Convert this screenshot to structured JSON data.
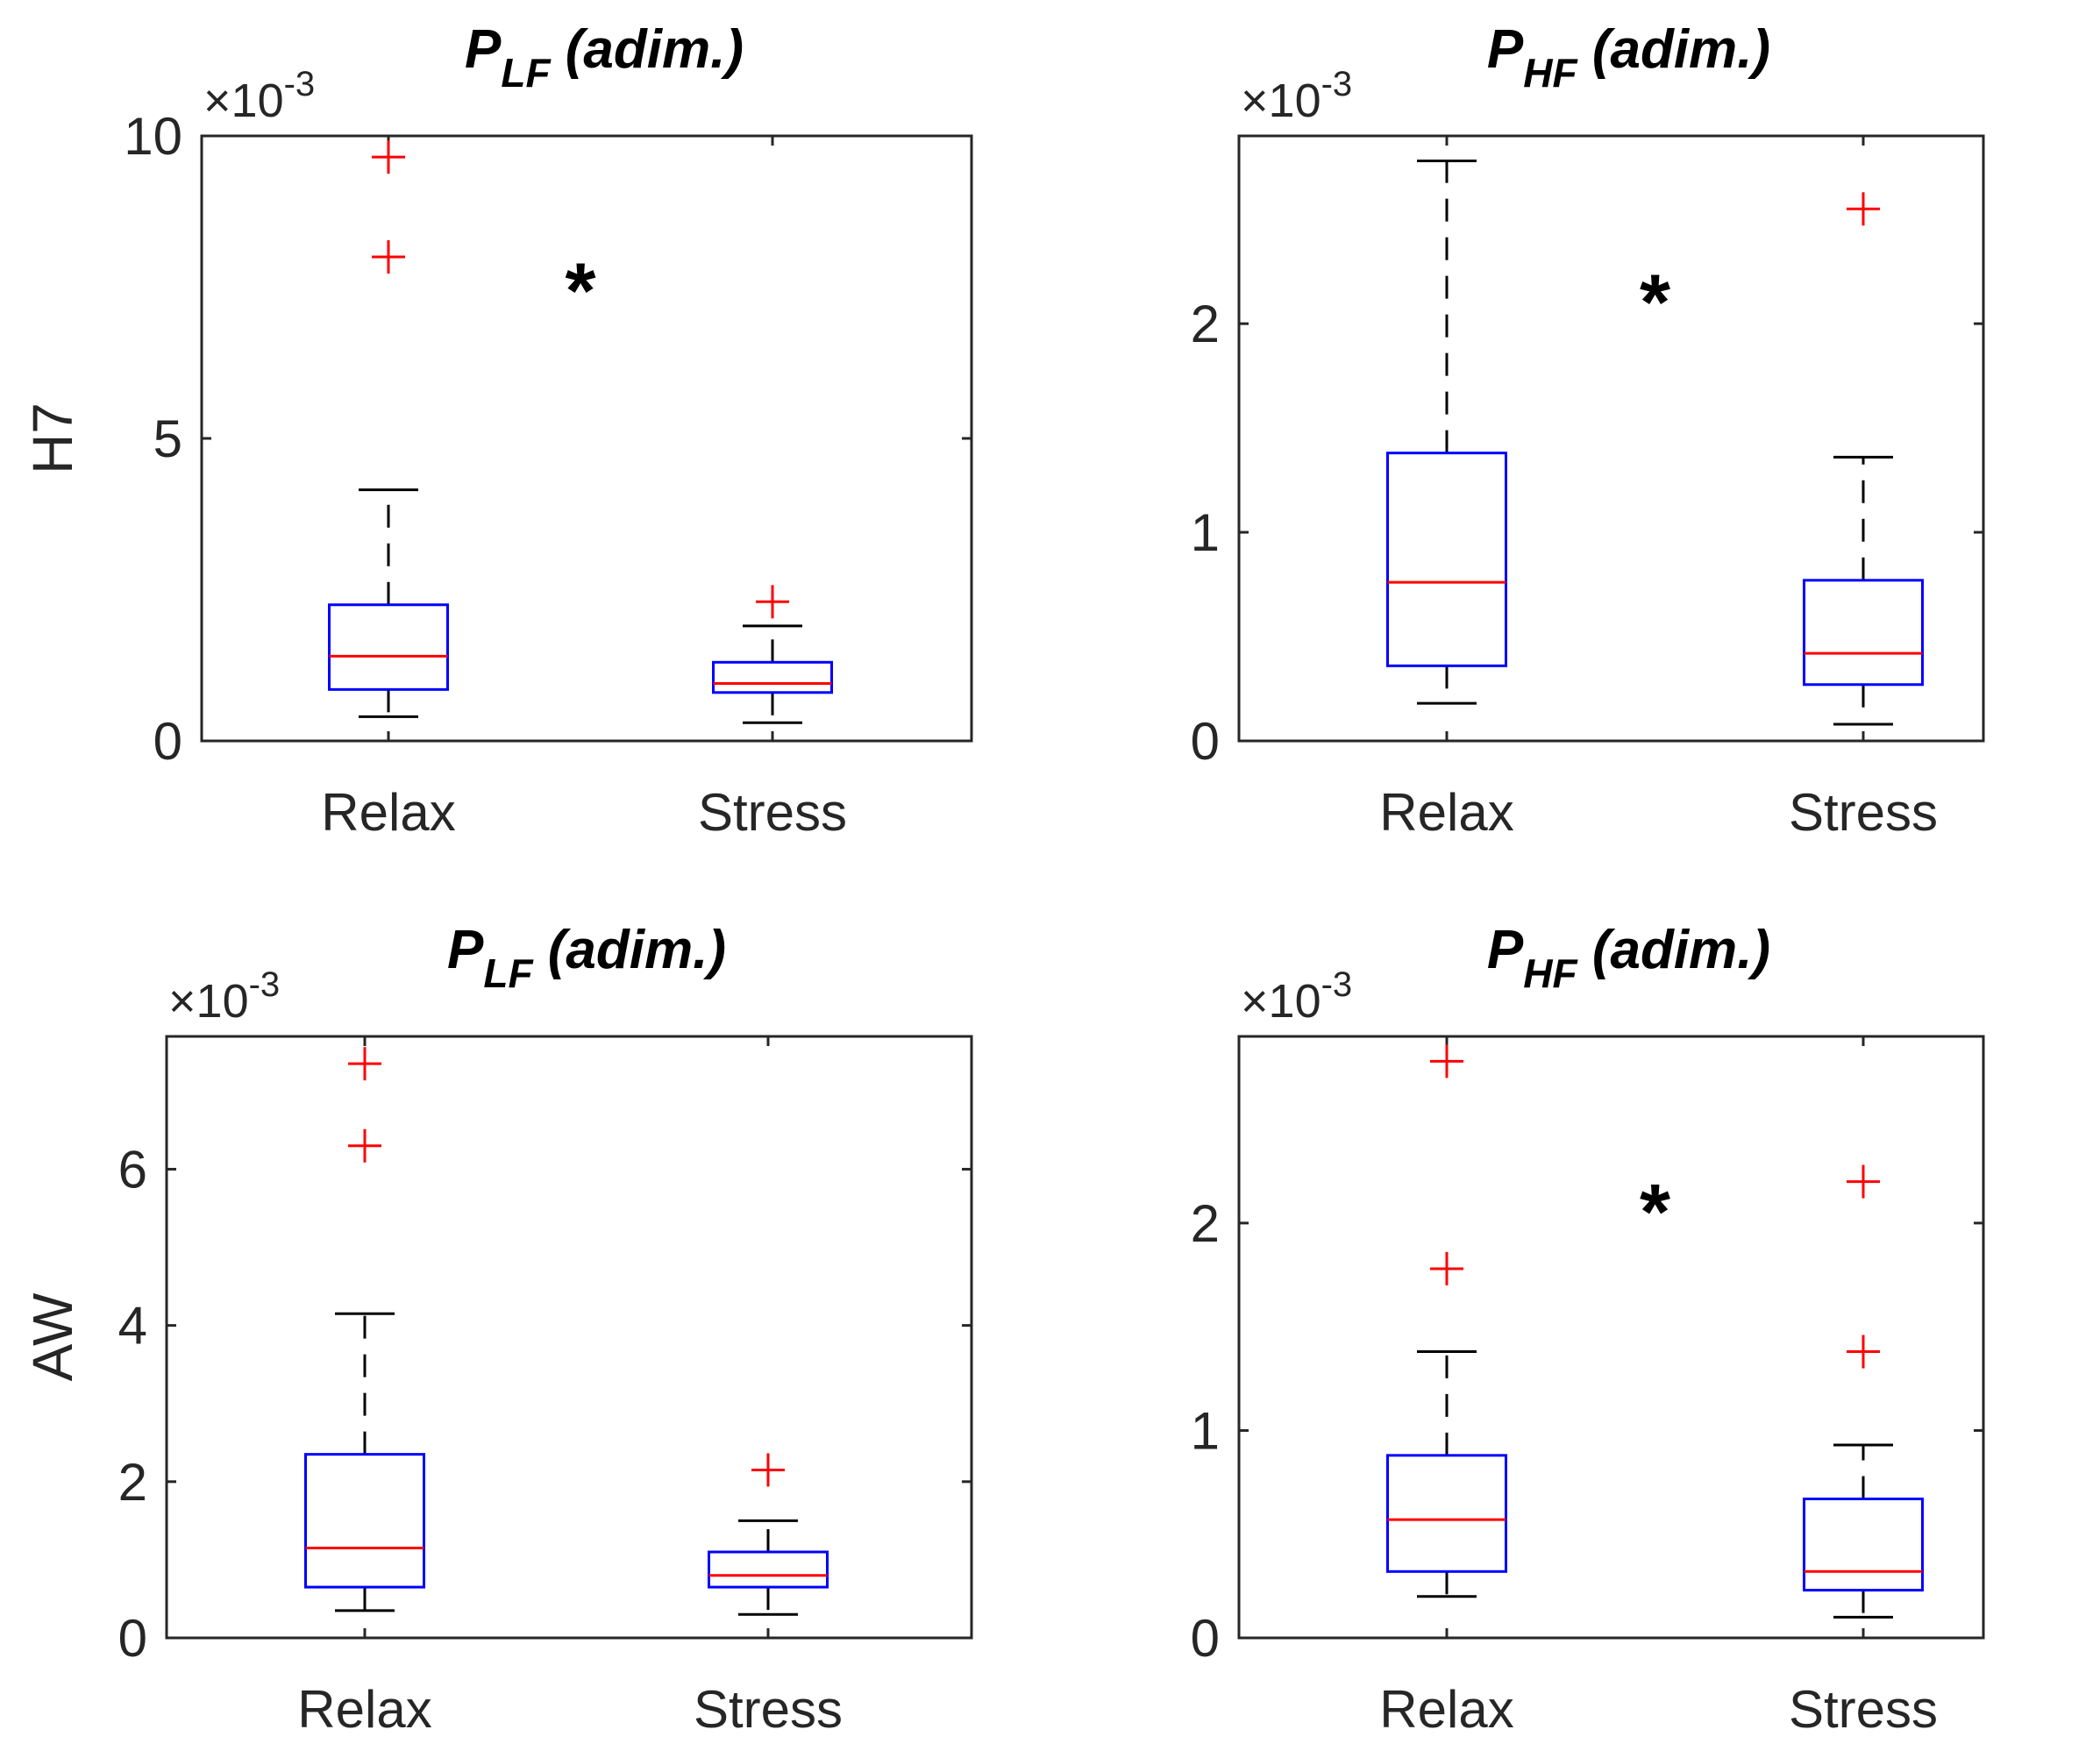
{
  "figure": {
    "colors": {
      "box": "#0000ff",
      "median": "#ff0000",
      "outlier": "#ff0000",
      "whisker": "#000000",
      "axis": "#262626"
    }
  },
  "chart_data": [
    {
      "type": "box",
      "title_main": "P",
      "title_sub": "LF",
      "title_rest": " (adim.)",
      "ylabel": "H7",
      "exponent_base": "×10",
      "exponent_power": "-3",
      "ylim": [
        0,
        10
      ],
      "yticks": [
        0,
        5,
        10
      ],
      "ytick_labels": [
        "0",
        "5",
        "10"
      ],
      "significance": "*",
      "significance_pos": {
        "x": 1.5,
        "y": 7.6
      },
      "categories": [
        "Relax",
        "Stress"
      ],
      "groups": [
        {
          "name": "Relax",
          "whisker_low": 0.4,
          "q1": 0.85,
          "median": 1.4,
          "q3": 2.25,
          "whisker_high": 4.15,
          "outliers": [
            8.0,
            9.65
          ]
        },
        {
          "name": "Stress",
          "whisker_low": 0.3,
          "q1": 0.8,
          "median": 0.95,
          "q3": 1.3,
          "whisker_high": 1.9,
          "outliers": [
            2.3
          ]
        }
      ]
    },
    {
      "type": "box",
      "title_main": "P",
      "title_sub": "HF",
      "title_rest": " (adim.)",
      "ylabel": "",
      "exponent_base": "×10",
      "exponent_power": "-3",
      "ylim": [
        0,
        2.9
      ],
      "yticks": [
        0,
        1,
        2
      ],
      "ytick_labels": [
        "0",
        "1",
        "2"
      ],
      "significance": "*",
      "significance_pos": {
        "x": 1.5,
        "y": 2.15
      },
      "categories": [
        "Relax",
        "Stress"
      ],
      "groups": [
        {
          "name": "Relax",
          "whisker_low": 0.18,
          "q1": 0.36,
          "median": 0.76,
          "q3": 1.38,
          "whisker_high": 2.78,
          "outliers": []
        },
        {
          "name": "Stress",
          "whisker_low": 0.08,
          "q1": 0.27,
          "median": 0.42,
          "q3": 0.77,
          "whisker_high": 1.36,
          "outliers": [
            2.55
          ]
        }
      ]
    },
    {
      "type": "box",
      "title_main": "P",
      "title_sub": "LF",
      "title_rest": " (adim.)",
      "ylabel": "AW",
      "exponent_base": "×10",
      "exponent_power": "-3",
      "ylim": [
        0,
        7.7
      ],
      "yticks": [
        0,
        2,
        4,
        6
      ],
      "ytick_labels": [
        "0",
        "2",
        "4",
        "6"
      ],
      "significance": "",
      "categories": [
        "Relax",
        "Stress"
      ],
      "groups": [
        {
          "name": "Relax",
          "whisker_low": 0.35,
          "q1": 0.65,
          "median": 1.15,
          "q3": 2.35,
          "whisker_high": 4.15,
          "outliers": [
            6.3,
            7.35
          ]
        },
        {
          "name": "Stress",
          "whisker_low": 0.3,
          "q1": 0.65,
          "median": 0.8,
          "q3": 1.1,
          "whisker_high": 1.5,
          "outliers": [
            2.15
          ]
        }
      ]
    },
    {
      "type": "box",
      "title_main": "P",
      "title_sub": "HF",
      "title_rest": " (adim.)",
      "ylabel": "",
      "exponent_base": "×10",
      "exponent_power": "-3",
      "ylim": [
        0,
        2.9
      ],
      "yticks": [
        0,
        1,
        2
      ],
      "ytick_labels": [
        "0",
        "1",
        "2"
      ],
      "significance": "*",
      "significance_pos": {
        "x": 1.5,
        "y": 2.1
      },
      "categories": [
        "Relax",
        "Stress"
      ],
      "groups": [
        {
          "name": "Relax",
          "whisker_low": 0.2,
          "q1": 0.32,
          "median": 0.57,
          "q3": 0.88,
          "whisker_high": 1.38,
          "outliers": [
            1.78,
            2.78
          ]
        },
        {
          "name": "Stress",
          "whisker_low": 0.1,
          "q1": 0.23,
          "median": 0.32,
          "q3": 0.67,
          "whisker_high": 0.93,
          "outliers": [
            1.38,
            2.2
          ]
        }
      ]
    }
  ]
}
